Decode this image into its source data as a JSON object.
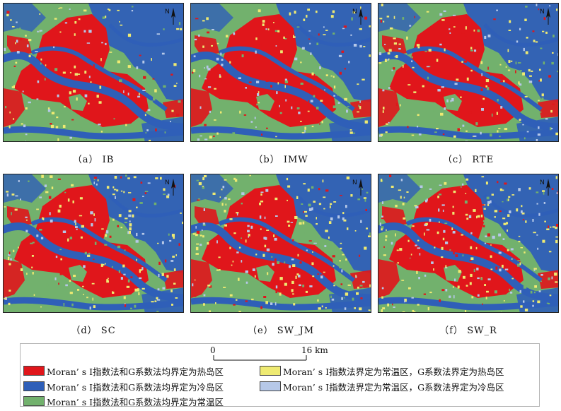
{
  "panels": [
    {
      "caption": "（a） IB"
    },
    {
      "caption": "（b） IMW"
    },
    {
      "caption": "（c） RTE"
    },
    {
      "caption": "（d） SC"
    },
    {
      "caption": "（e） SW_JM"
    },
    {
      "caption": "（f） SW_R"
    }
  ],
  "north_label": "N",
  "scale": {
    "start": "0",
    "end": "16 km"
  },
  "legend": [
    {
      "label": "Moran’ s I指数法和G系数法均界定为热岛区",
      "color": "#e0161b"
    },
    {
      "label": "Moran’ s I指数法和G系数法均界定为冷岛区",
      "color": "#2f5fb8"
    },
    {
      "label": "Moran’ s I指数法和G系数法均界定为常温区",
      "color": "#72b16d"
    },
    {
      "label": "Moran’ s I指数法界定为常温区，G系数法界定为热岛区",
      "color": "#eeea72"
    },
    {
      "label": "Moran’ s I指数法界定为常温区，G系数法界定为冷岛区",
      "color": "#b6c8e8"
    }
  ]
}
